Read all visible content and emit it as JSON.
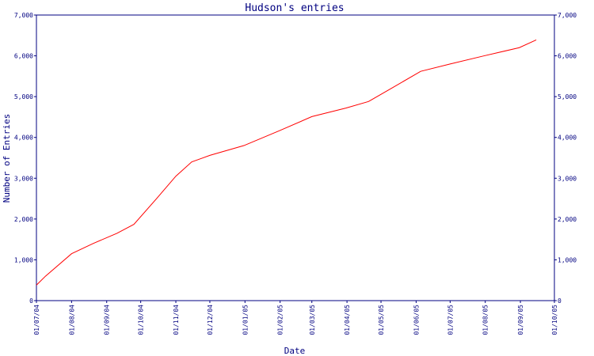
{
  "chart_data": {
    "type": "line",
    "title": "Hudson's entries",
    "xlabel": "Date",
    "ylabel": "Number of Entries",
    "x_tick_labels": [
      "01/07/04",
      "01/08/04",
      "01/09/04",
      "01/10/04",
      "01/11/04",
      "01/12/04",
      "01/01/05",
      "01/02/05",
      "01/03/05",
      "01/04/05",
      "01/05/05",
      "01/06/05",
      "01/07/05",
      "01/08/05",
      "01/09/05",
      "01/10/05"
    ],
    "x_range": [
      "2004-07-01",
      "2005-10-01"
    ],
    "ylim": [
      0,
      7000
    ],
    "y_ticks": [
      0,
      1000,
      2000,
      3000,
      4000,
      5000,
      6000,
      7000
    ],
    "y_tick_labels": [
      "0",
      "1,000",
      "2,000",
      "3,000",
      "4,000",
      "5,000",
      "6,000",
      "7,000"
    ],
    "right_axis": true,
    "grid": false,
    "series": [
      {
        "color": "#ff0000",
        "x": [
          "2004-07-01",
          "2004-07-09",
          "2004-08-01",
          "2004-08-20",
          "2004-09-10",
          "2004-09-25",
          "2004-10-15",
          "2004-11-01",
          "2004-11-15",
          "2004-12-01",
          "2004-12-31",
          "2005-01-31",
          "2005-03-01",
          "2005-03-31",
          "2005-04-20",
          "2005-05-10",
          "2005-06-05",
          "2005-07-01",
          "2005-07-31",
          "2005-08-31",
          "2005-09-15"
        ],
        "y": [
          380,
          600,
          1150,
          1400,
          1650,
          1870,
          2500,
          3050,
          3400,
          3560,
          3800,
          4160,
          4510,
          4720,
          4880,
          5200,
          5620,
          5800,
          6000,
          6200,
          6390
        ]
      }
    ]
  }
}
